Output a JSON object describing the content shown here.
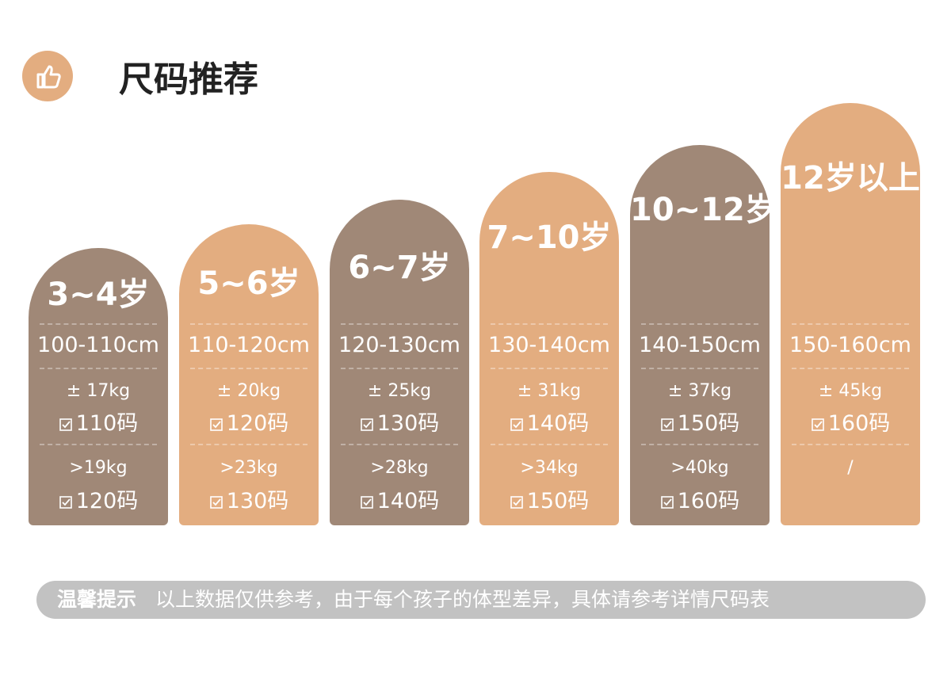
{
  "header": {
    "title": "尺码推荐"
  },
  "columns": [
    {
      "age": "3~4岁",
      "height": "100-110cm",
      "weight1": "± 17kg",
      "size1": "110码",
      "weight2": ">19kg",
      "size2": "120码"
    },
    {
      "age": "5~6岁",
      "height": "110-120cm",
      "weight1": "± 20kg",
      "size1": "120码",
      "weight2": ">23kg",
      "size2": "130码"
    },
    {
      "age": "6~7岁",
      "height": "120-130cm",
      "weight1": "± 25kg",
      "size1": "130码",
      "weight2": ">28kg",
      "size2": "140码"
    },
    {
      "age": "7~10岁",
      "height": "130-140cm",
      "weight1": "± 31kg",
      "size1": "140码",
      "weight2": ">34kg",
      "size2": "150码"
    },
    {
      "age": "10~12岁",
      "height": "140-150cm",
      "weight1": "± 37kg",
      "size1": "150码",
      "weight2": ">40kg",
      "size2": "160码"
    },
    {
      "age": "12岁以上",
      "height": "150-160cm",
      "weight1": "± 45kg",
      "size1": "160码",
      "weight2": "/"
    }
  ],
  "note": {
    "label": "温馨提示",
    "text": "以上数据仅供参考，由于每个孩子的体型差异，具体请参考详情尺码表"
  }
}
